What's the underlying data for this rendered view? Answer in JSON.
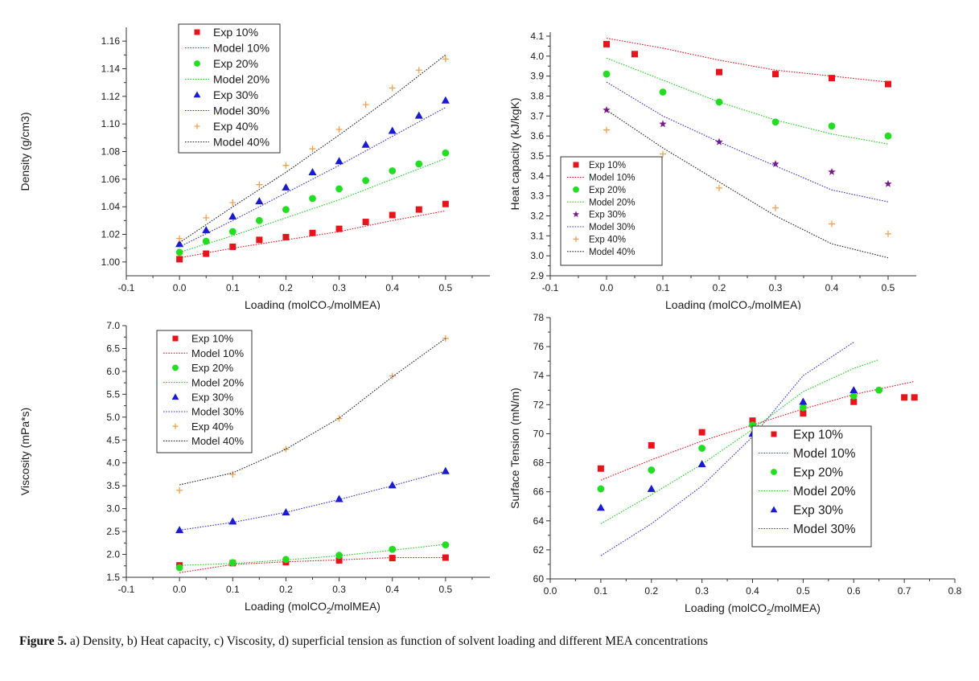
{
  "charts_meta": {
    "series_colors": {
      "Exp 10%": "#e8141c",
      "Model 10%": "#e8141c",
      "Exp 20%": "#22dd22",
      "Model 20%": "#22cc22",
      "Exp 30%": "#1a1ad0",
      "Model 30%": "#3333cc",
      "Exp 40%": "#f0a050",
      "Model 40%": "#222222"
    },
    "heat_capacity_30pct_marker_color": "#7b1a8a"
  },
  "chart_data": [
    {
      "id": "density",
      "type": "scatter",
      "title": "",
      "xlabel": "Loading (molCO2/molMEA)",
      "ylabel": "Density (g/cm3)",
      "xlim": [
        -0.1,
        0.6
      ],
      "ylim": [
        0.99,
        1.17
      ],
      "xticks": [
        -0.1,
        0.0,
        0.1,
        0.2,
        0.3,
        0.4,
        0.5,
        0.6
      ],
      "yticks": [
        1.0,
        1.02,
        1.04,
        1.06,
        1.08,
        1.1,
        1.12,
        1.14,
        1.16
      ],
      "xtick_labels": [
        "-0.1",
        "0.0",
        "0.1",
        "0.2",
        "0.3",
        "0.4",
        "0.5",
        "0.6"
      ],
      "ytick_labels": [
        "1.00",
        "1.02",
        "1.04",
        "1.06",
        "1.08",
        "1.10",
        "1.12",
        "1.14",
        "1.16"
      ],
      "legend_placement": "top-left",
      "legend": [
        "Exp 10%",
        "Model 10%",
        "Exp 20%",
        "Model 20%",
        "Exp 30%",
        "Model 30%",
        "Exp 40%",
        "Model 40%"
      ],
      "series": [
        {
          "name": "Exp 10%",
          "kind": "marker",
          "marker": "square",
          "x": [
            0,
            0.05,
            0.1,
            0.15,
            0.2,
            0.25,
            0.3,
            0.35,
            0.4,
            0.45,
            0.5
          ],
          "y": [
            1.002,
            1.006,
            1.011,
            1.016,
            1.018,
            1.021,
            1.024,
            1.029,
            1.034,
            1.038,
            1.042
          ]
        },
        {
          "name": "Model 10%",
          "kind": "line",
          "x": [
            0,
            0.1,
            0.2,
            0.3,
            0.4,
            0.5
          ],
          "y": [
            1.003,
            1.01,
            1.016,
            1.022,
            1.03,
            1.037
          ]
        },
        {
          "name": "Exp 20%",
          "kind": "marker",
          "marker": "circle",
          "x": [
            0,
            0.05,
            0.1,
            0.15,
            0.2,
            0.25,
            0.3,
            0.35,
            0.4,
            0.45,
            0.5
          ],
          "y": [
            1.007,
            1.015,
            1.022,
            1.03,
            1.038,
            1.046,
            1.053,
            1.059,
            1.066,
            1.071,
            1.079
          ]
        },
        {
          "name": "Model 20%",
          "kind": "line",
          "x": [
            0,
            0.1,
            0.2,
            0.3,
            0.4,
            0.5
          ],
          "y": [
            1.007,
            1.019,
            1.032,
            1.045,
            1.06,
            1.075
          ]
        },
        {
          "name": "Exp 30%",
          "kind": "marker",
          "marker": "triangle",
          "x": [
            0,
            0.05,
            0.1,
            0.15,
            0.2,
            0.25,
            0.3,
            0.35,
            0.4,
            0.45,
            0.5
          ],
          "y": [
            1.013,
            1.023,
            1.033,
            1.044,
            1.054,
            1.065,
            1.073,
            1.085,
            1.095,
            1.106,
            1.117
          ]
        },
        {
          "name": "Model 30%",
          "kind": "line",
          "x": [
            0,
            0.1,
            0.2,
            0.3,
            0.4,
            0.5
          ],
          "y": [
            1.011,
            1.03,
            1.05,
            1.07,
            1.091,
            1.112
          ]
        },
        {
          "name": "Exp 40%",
          "kind": "marker",
          "marker": "plus",
          "x": [
            0,
            0.05,
            0.1,
            0.15,
            0.2,
            0.25,
            0.3,
            0.35,
            0.4,
            0.45,
            0.5
          ],
          "y": [
            1.017,
            1.032,
            1.043,
            1.056,
            1.07,
            1.082,
            1.096,
            1.114,
            1.126,
            1.139,
            1.147
          ]
        },
        {
          "name": "Model 40%",
          "kind": "line",
          "x": [
            0,
            0.1,
            0.2,
            0.3,
            0.4,
            0.5
          ],
          "y": [
            1.014,
            1.04,
            1.065,
            1.092,
            1.12,
            1.15
          ]
        }
      ]
    },
    {
      "id": "heat-capacity",
      "type": "scatter",
      "title": "",
      "xlabel": "Loading (molCO2/molMEA)",
      "ylabel": "Heat capacity (kJ/kgK)",
      "xlim": [
        -0.1,
        0.55
      ],
      "ylim": [
        2.9,
        4.12
      ],
      "xticks": [
        -0.1,
        0.0,
        0.1,
        0.2,
        0.3,
        0.4,
        0.5
      ],
      "yticks": [
        2.9,
        3.0,
        3.1,
        3.2,
        3.3,
        3.4,
        3.5,
        3.6,
        3.7,
        3.8,
        3.9,
        4.0,
        4.1
      ],
      "xtick_labels": [
        "-0.1",
        "0.0",
        "0.1",
        "0.2",
        "0.3",
        "0.4",
        "0.5"
      ],
      "ytick_labels": [
        "2.9",
        "3.0",
        "3.1",
        "3.2",
        "3.3",
        "3.4",
        "3.5",
        "3.6",
        "3.7",
        "3.8",
        "3.9",
        "4.0",
        "4.1"
      ],
      "legend_placement": "bottom-left",
      "legend": [
        "Exp 10%",
        "Model 10%",
        "Exp 20%",
        "Model 20%",
        "Exp 30%",
        "Model 30%",
        "Exp 40%",
        "Model 40%"
      ],
      "series": [
        {
          "name": "Exp 10%",
          "kind": "marker",
          "marker": "square",
          "x": [
            0,
            0.05,
            0.2,
            0.3,
            0.4,
            0.5
          ],
          "y": [
            4.06,
            4.01,
            3.92,
            3.91,
            3.89,
            3.86
          ]
        },
        {
          "name": "Model 10%",
          "kind": "line",
          "x": [
            0,
            0.1,
            0.2,
            0.3,
            0.4,
            0.5
          ],
          "y": [
            4.09,
            4.04,
            3.98,
            3.93,
            3.9,
            3.87
          ]
        },
        {
          "name": "Exp 20%",
          "kind": "marker",
          "marker": "circle",
          "x": [
            0,
            0.1,
            0.2,
            0.3,
            0.4,
            0.5
          ],
          "y": [
            3.91,
            3.82,
            3.77,
            3.67,
            3.65,
            3.6
          ]
        },
        {
          "name": "Model 20%",
          "kind": "line",
          "x": [
            0,
            0.1,
            0.2,
            0.3,
            0.4,
            0.5
          ],
          "y": [
            3.99,
            3.88,
            3.77,
            3.68,
            3.61,
            3.56
          ]
        },
        {
          "name": "Exp 30%",
          "kind": "marker",
          "marker": "star",
          "x": [
            0,
            0.1,
            0.2,
            0.3,
            0.4,
            0.5
          ],
          "y": [
            3.73,
            3.66,
            3.57,
            3.46,
            3.42,
            3.36
          ]
        },
        {
          "name": "Model 30%",
          "kind": "line",
          "x": [
            0,
            0.1,
            0.2,
            0.3,
            0.4,
            0.5
          ],
          "y": [
            3.87,
            3.7,
            3.57,
            3.45,
            3.33,
            3.27
          ]
        },
        {
          "name": "Exp 40%",
          "kind": "marker",
          "marker": "plus",
          "x": [
            0,
            0.1,
            0.2,
            0.3,
            0.4,
            0.5
          ],
          "y": [
            3.63,
            3.51,
            3.34,
            3.24,
            3.16,
            3.11
          ]
        },
        {
          "name": "Model 40%",
          "kind": "line",
          "x": [
            0,
            0.1,
            0.2,
            0.3,
            0.4,
            0.5
          ],
          "y": [
            3.73,
            3.54,
            3.37,
            3.2,
            3.06,
            2.99
          ]
        }
      ]
    },
    {
      "id": "viscosity",
      "type": "scatter",
      "title": "",
      "xlabel": "Loading (molCO2/molMEA)",
      "ylabel": "Viscosity (mPa*s)",
      "xlim": [
        -0.1,
        0.6
      ],
      "ylim": [
        1.5,
        7.0
      ],
      "xticks": [
        -0.1,
        0.0,
        0.1,
        0.2,
        0.3,
        0.4,
        0.5,
        0.6
      ],
      "yticks": [
        1.5,
        2.0,
        2.5,
        3.0,
        3.5,
        4.0,
        4.5,
        5.0,
        5.5,
        6.0,
        6.5,
        7.0
      ],
      "xtick_labels": [
        "-0.1",
        "0.0",
        "0.1",
        "0.2",
        "0.3",
        "0.4",
        "0.5",
        "0.6"
      ],
      "ytick_labels": [
        "1.5",
        "2.0",
        "2.5",
        "3.0",
        "3.5",
        "4.0",
        "4.5",
        "5.0",
        "5.5",
        "6.0",
        "6.5",
        "7.0"
      ],
      "legend_placement": "top-left",
      "legend": [
        "Exp 10%",
        "Model 10%",
        "Exp 20%",
        "Model 20%",
        "Exp 30%",
        "Model 30%",
        "Exp 40%",
        "Model 40%"
      ],
      "series": [
        {
          "name": "Exp 10%",
          "kind": "marker",
          "marker": "square",
          "x": [
            0,
            0.1,
            0.2,
            0.3,
            0.4,
            0.5
          ],
          "y": [
            1.76,
            1.81,
            1.83,
            1.87,
            1.92,
            1.93
          ]
        },
        {
          "name": "Model 10%",
          "kind": "line",
          "x": [
            0,
            0.1,
            0.2,
            0.3,
            0.4,
            0.5
          ],
          "y": [
            1.6,
            1.78,
            1.84,
            1.88,
            1.93,
            1.93
          ]
        },
        {
          "name": "Exp 20%",
          "kind": "marker",
          "marker": "circle",
          "x": [
            0,
            0.1,
            0.2,
            0.3,
            0.4,
            0.5
          ],
          "y": [
            1.71,
            1.82,
            1.89,
            1.98,
            2.11,
            2.21
          ]
        },
        {
          "name": "Model 20%",
          "kind": "line",
          "x": [
            0,
            0.1,
            0.2,
            0.3,
            0.4,
            0.5
          ],
          "y": [
            1.76,
            1.8,
            1.88,
            1.97,
            2.09,
            2.22
          ]
        },
        {
          "name": "Exp 30%",
          "kind": "marker",
          "marker": "triangle",
          "x": [
            0,
            0.1,
            0.2,
            0.3,
            0.4,
            0.5
          ],
          "y": [
            2.53,
            2.72,
            2.92,
            3.21,
            3.51,
            3.82
          ]
        },
        {
          "name": "Model 30%",
          "kind": "line",
          "x": [
            0,
            0.1,
            0.2,
            0.3,
            0.4,
            0.5
          ],
          "y": [
            2.53,
            2.7,
            2.92,
            3.2,
            3.5,
            3.82
          ]
        },
        {
          "name": "Exp 40%",
          "kind": "marker",
          "marker": "plus",
          "x": [
            0,
            0.1,
            0.2,
            0.3,
            0.4,
            0.5
          ],
          "y": [
            3.4,
            3.75,
            4.3,
            4.97,
            5.9,
            6.72
          ]
        },
        {
          "name": "Model 40%",
          "kind": "line",
          "x": [
            0,
            0.1,
            0.2,
            0.3,
            0.4,
            0.5
          ],
          "y": [
            3.52,
            3.78,
            4.3,
            4.98,
            5.88,
            6.72
          ]
        }
      ]
    },
    {
      "id": "surface-tension",
      "type": "scatter",
      "title": "",
      "xlabel": "Loading (molCO2/molMEA)",
      "ylabel": "Surface Tension (mN/m)",
      "xlim": [
        0.0,
        0.8
      ],
      "ylim": [
        60,
        78
      ],
      "xticks": [
        0.0,
        0.1,
        0.2,
        0.3,
        0.4,
        0.5,
        0.6,
        0.7,
        0.8
      ],
      "yticks": [
        60,
        62,
        64,
        66,
        68,
        70,
        72,
        74,
        76,
        78
      ],
      "xtick_labels": [
        "0.0",
        "0.1",
        "0.2",
        "0.3",
        "0.4",
        "0.5",
        "0.6",
        "0.7",
        "0.8"
      ],
      "ytick_labels": [
        "60",
        "62",
        "64",
        "66",
        "68",
        "70",
        "72",
        "74",
        "76",
        "78"
      ],
      "legend_placement": "center-right",
      "legend": [
        "Exp 10%",
        "Model 10%",
        "Exp 20%",
        "Model 20%",
        "Exp 30%",
        "Model 30%"
      ],
      "series": [
        {
          "name": "Exp 10%",
          "kind": "marker",
          "marker": "square",
          "x": [
            0.1,
            0.2,
            0.3,
            0.4,
            0.5,
            0.6,
            0.7,
            0.72
          ],
          "y": [
            67.6,
            69.2,
            70.1,
            70.9,
            71.4,
            72.2,
            72.5,
            72.5
          ]
        },
        {
          "name": "Model 10%",
          "kind": "line",
          "x": [
            0.1,
            0.2,
            0.3,
            0.4,
            0.5,
            0.6,
            0.72
          ],
          "y": [
            66.8,
            68.2,
            69.5,
            70.6,
            71.7,
            72.7,
            73.6
          ]
        },
        {
          "name": "Exp 20%",
          "kind": "marker",
          "marker": "circle",
          "x": [
            0.1,
            0.2,
            0.3,
            0.4,
            0.5,
            0.6,
            0.65
          ],
          "y": [
            66.2,
            67.5,
            69.0,
            70.6,
            71.8,
            72.6,
            73.0
          ]
        },
        {
          "name": "Model 20%",
          "kind": "line",
          "x": [
            0.1,
            0.2,
            0.3,
            0.4,
            0.5,
            0.6,
            0.65
          ],
          "y": [
            63.8,
            65.8,
            67.9,
            70.3,
            72.9,
            74.5,
            75.1
          ]
        },
        {
          "name": "Exp 30%",
          "kind": "marker",
          "marker": "triangle",
          "x": [
            0.1,
            0.2,
            0.3,
            0.4,
            0.5,
            0.6
          ],
          "y": [
            64.9,
            66.2,
            67.9,
            70.0,
            72.2,
            73.0
          ]
        },
        {
          "name": "Model 30%",
          "kind": "line",
          "x": [
            0.1,
            0.2,
            0.3,
            0.4,
            0.5,
            0.6
          ],
          "y": [
            61.6,
            63.8,
            66.4,
            69.8,
            74.0,
            76.3
          ]
        }
      ]
    }
  ],
  "caption": {
    "label": "Figure 5.",
    "text": " a) Density, b) Heat capacity, c) Viscosity, d) superficial tension as function of solvent loading and different MEA concentrations"
  }
}
